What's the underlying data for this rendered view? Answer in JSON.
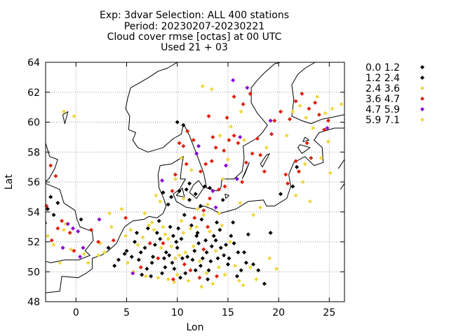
{
  "chart_data": {
    "type": "scatter",
    "title_lines": [
      "Exp: 3dvar   Selection: ALL     400 stations",
      "Period: 20230207-20230221",
      "Cloud cover rmse [octas] at  00 UTC",
      "Used 21 + 03"
    ],
    "xlabel": "Lon",
    "ylabel": "Lat",
    "xlim": [
      -3,
      26.5
    ],
    "ylim": [
      48,
      64
    ],
    "xticks": [
      0,
      5,
      10,
      15,
      20,
      25
    ],
    "yticks": [
      48,
      50,
      52,
      54,
      56,
      58,
      60,
      62,
      64
    ],
    "grid": true,
    "legend_position": "right",
    "basemap": "coastlines",
    "series": [
      {
        "name": "0.0 1.2",
        "color": "#000000",
        "points": [
          [
            -2.5,
            55.0
          ],
          [
            -1.8,
            54.6
          ],
          [
            -2.8,
            54.2
          ],
          [
            3.2,
            51.6
          ],
          [
            3.8,
            50.4
          ],
          [
            5.0,
            51.4
          ],
          [
            5.5,
            51.0
          ],
          [
            5.8,
            52.0
          ],
          [
            6.2,
            50.8
          ],
          [
            6.5,
            49.8
          ],
          [
            6.8,
            51.6
          ],
          [
            7.0,
            50.2
          ],
          [
            7.5,
            50.6
          ],
          [
            7.8,
            51.8
          ],
          [
            8.0,
            52.6
          ],
          [
            8.2,
            53.4
          ],
          [
            8.5,
            49.9
          ],
          [
            8.7,
            50.9
          ],
          [
            8.9,
            51.3
          ],
          [
            9.2,
            51.1
          ],
          [
            9.5,
            50.6
          ],
          [
            9.7,
            50.2
          ],
          [
            9.9,
            52.0
          ],
          [
            10.1,
            52.9
          ],
          [
            10.3,
            49.6
          ],
          [
            10.5,
            50.9
          ],
          [
            10.7,
            53.8
          ],
          [
            10.9,
            55.5
          ],
          [
            11.2,
            55.9
          ],
          [
            11.5,
            50.8
          ],
          [
            11.7,
            51.4
          ],
          [
            11.9,
            52.4
          ],
          [
            12.1,
            51.9
          ],
          [
            12.3,
            50.4
          ],
          [
            12.5,
            50.9
          ],
          [
            12.7,
            55.7
          ],
          [
            12.9,
            51.3
          ],
          [
            13.1,
            50.1
          ],
          [
            13.3,
            50.7
          ],
          [
            13.6,
            52.4
          ],
          [
            13.8,
            52.1
          ],
          [
            14.0,
            50.9
          ],
          [
            14.3,
            51.6
          ],
          [
            14.6,
            51.1
          ],
          [
            15.0,
            50.5
          ],
          [
            15.3,
            52.4
          ],
          [
            15.6,
            51.9
          ],
          [
            15.9,
            49.7
          ],
          [
            16.3,
            50.1
          ],
          [
            16.6,
            51.3
          ],
          [
            17.0,
            52.5
          ],
          [
            17.5,
            50.5
          ],
          [
            18.6,
            49.2
          ],
          [
            19.2,
            52.6
          ],
          [
            20.2,
            55.2
          ],
          [
            21.4,
            55.7
          ],
          [
            10.0,
            60.0
          ],
          [
            10.6,
            59.8
          ],
          [
            11.2,
            54.8
          ],
          [
            9.4,
            55.0
          ]
        ]
      },
      {
        "name": "1.2 2.4",
        "color": "#000000",
        "points": [
          [
            -2.2,
            53.8
          ],
          [
            0.5,
            53.5
          ],
          [
            4.2,
            50.8
          ],
          [
            4.8,
            51.2
          ],
          [
            6.0,
            52.6
          ],
          [
            6.4,
            51.3
          ],
          [
            7.1,
            52.9
          ],
          [
            7.6,
            51.0
          ],
          [
            8.3,
            52.2
          ],
          [
            8.8,
            50.3
          ],
          [
            9.3,
            53.0
          ],
          [
            9.6,
            52.4
          ],
          [
            10.0,
            51.6
          ],
          [
            10.4,
            52.2
          ],
          [
            10.8,
            49.9
          ],
          [
            11.0,
            51.0
          ],
          [
            11.4,
            53.1
          ],
          [
            11.8,
            50.1
          ],
          [
            12.0,
            52.6
          ],
          [
            12.4,
            53.5
          ],
          [
            12.8,
            52.1
          ],
          [
            13.0,
            49.5
          ],
          [
            13.4,
            51.7
          ],
          [
            13.9,
            53.3
          ],
          [
            14.2,
            52.8
          ],
          [
            14.8,
            51.8
          ],
          [
            15.1,
            50.9
          ],
          [
            15.5,
            53.3
          ],
          [
            16.0,
            51.3
          ],
          [
            16.8,
            50.6
          ],
          [
            18.0,
            50.1
          ],
          [
            9.1,
            54.5
          ],
          [
            10.2,
            55.4
          ],
          [
            11.8,
            55.2
          ],
          [
            12.3,
            54.4
          ],
          [
            13.2,
            55.6
          ],
          [
            14.5,
            54.8
          ],
          [
            8.6,
            55.3
          ],
          [
            21.8,
            57.0
          ],
          [
            7.4,
            49.7
          ]
        ]
      },
      {
        "name": "2.4 3.6",
        "color": "#f0d840",
        "points": [
          [
            -2.8,
            52.4
          ],
          [
            -2.2,
            51.8
          ],
          [
            -1.6,
            50.6
          ],
          [
            -1.0,
            53.2
          ],
          [
            -0.2,
            60.4
          ],
          [
            -1.2,
            60.7
          ],
          [
            0.8,
            51.2
          ],
          [
            1.2,
            50.6
          ],
          [
            2.2,
            51.1
          ],
          [
            2.8,
            51.3
          ],
          [
            3.5,
            53.0
          ],
          [
            4.5,
            54.2
          ],
          [
            4.9,
            52.4
          ],
          [
            5.1,
            50.6
          ],
          [
            5.4,
            52.8
          ],
          [
            5.7,
            50.0
          ],
          [
            6.1,
            51.8
          ],
          [
            6.6,
            52.3
          ],
          [
            6.9,
            49.7
          ],
          [
            7.2,
            53.1
          ],
          [
            7.7,
            52.8
          ],
          [
            8.1,
            49.6
          ],
          [
            8.4,
            51.6
          ],
          [
            8.6,
            53.0
          ],
          [
            8.8,
            52.5
          ],
          [
            9.1,
            49.5
          ],
          [
            9.4,
            51.7
          ],
          [
            9.8,
            50.9
          ],
          [
            10.0,
            49.8
          ],
          [
            10.2,
            51.1
          ],
          [
            10.4,
            53.4
          ],
          [
            10.6,
            52.6
          ],
          [
            10.8,
            51.3
          ],
          [
            11.1,
            49.4
          ],
          [
            11.3,
            52.9
          ],
          [
            11.6,
            51.7
          ],
          [
            11.9,
            53.0
          ],
          [
            12.2,
            50.7
          ],
          [
            12.6,
            53.8
          ],
          [
            12.9,
            49.9
          ],
          [
            13.2,
            52.7
          ],
          [
            13.5,
            49.2
          ],
          [
            13.8,
            51.4
          ],
          [
            14.1,
            50.3
          ],
          [
            14.4,
            53.1
          ],
          [
            14.7,
            49.8
          ],
          [
            15.2,
            52.0
          ],
          [
            15.7,
            50.4
          ],
          [
            16.1,
            49.4
          ],
          [
            16.5,
            49.1
          ],
          [
            17.2,
            50.3
          ],
          [
            17.5,
            53.8
          ],
          [
            18.2,
            54.3
          ],
          [
            12.5,
            62.4
          ],
          [
            13.4,
            62.2
          ],
          [
            15.3,
            59.7
          ],
          [
            16.6,
            58.8
          ],
          [
            18.8,
            58.3
          ],
          [
            20.8,
            59.1
          ],
          [
            21.4,
            60.7
          ],
          [
            22.1,
            61.1
          ],
          [
            22.7,
            60.3
          ],
          [
            23.4,
            59.6
          ],
          [
            23.8,
            61.7
          ],
          [
            24.6,
            60.6
          ],
          [
            25.3,
            60.9
          ],
          [
            26.2,
            61.2
          ],
          [
            24.9,
            58.7
          ],
          [
            22.6,
            57.2
          ],
          [
            22.4,
            56.0
          ],
          [
            23.1,
            54.7
          ],
          [
            21.7,
            55.1
          ],
          [
            24.2,
            57.6
          ],
          [
            25.1,
            56.6
          ],
          [
            14.5,
            56.2
          ],
          [
            15.0,
            57.5
          ],
          [
            10.4,
            57.6
          ],
          [
            9.8,
            56.2
          ],
          [
            11.4,
            56.8
          ],
          [
            12.0,
            54.2
          ],
          [
            13.0,
            54.5
          ],
          [
            14.1,
            53.9
          ],
          [
            16.2,
            54.6
          ],
          [
            19.8,
            50.2
          ],
          [
            7.9,
            55.1
          ],
          [
            8.3,
            54.7
          ],
          [
            -0.5,
            51.5
          ],
          [
            -1.2,
            52.8
          ],
          [
            2.4,
            51.9
          ],
          [
            17.8,
            49.5
          ],
          [
            9.7,
            49.3
          ],
          [
            12.4,
            49.0
          ]
        ]
      },
      {
        "name": "3.6 4.7",
        "color": "#e02010",
        "points": [
          [
            -2.5,
            57.1
          ],
          [
            -2.0,
            56.4
          ],
          [
            -1.4,
            53.4
          ],
          [
            -2.4,
            52.1
          ],
          [
            -1.8,
            52.9
          ],
          [
            -2.9,
            54.4
          ],
          [
            -0.6,
            52.6
          ],
          [
            -0.2,
            51.4
          ],
          [
            1.5,
            52.8
          ],
          [
            3.7,
            52.1
          ],
          [
            4.9,
            53.6
          ],
          [
            6.4,
            50.3
          ],
          [
            7.3,
            51.9
          ],
          [
            8.1,
            50.9
          ],
          [
            8.6,
            51.9
          ],
          [
            9.6,
            49.5
          ],
          [
            10.7,
            50.5
          ],
          [
            11.3,
            50.1
          ],
          [
            11.7,
            53.6
          ],
          [
            12.2,
            49.6
          ],
          [
            12.6,
            51.5
          ],
          [
            13.0,
            53.0
          ],
          [
            13.9,
            49.7
          ],
          [
            14.1,
            55.5
          ],
          [
            14.7,
            55.7
          ],
          [
            12.3,
            56.7
          ],
          [
            12.8,
            57.2
          ],
          [
            13.4,
            57.4
          ],
          [
            13.8,
            58.3
          ],
          [
            14.6,
            58.1
          ],
          [
            15.1,
            58.8
          ],
          [
            15.6,
            59.1
          ],
          [
            16.0,
            58.6
          ],
          [
            16.8,
            57.3
          ],
          [
            17.4,
            57.9
          ],
          [
            18.2,
            57.8
          ],
          [
            18.6,
            56.7
          ],
          [
            17.9,
            58.9
          ],
          [
            19.3,
            59.2
          ],
          [
            19.6,
            60.1
          ],
          [
            20.2,
            60.7
          ],
          [
            21.1,
            60.2
          ],
          [
            21.7,
            61.4
          ],
          [
            22.3,
            61.9
          ],
          [
            23.0,
            60.9
          ],
          [
            23.6,
            61.3
          ],
          [
            24.0,
            60.5
          ],
          [
            24.5,
            59.5
          ],
          [
            24.9,
            60.1
          ],
          [
            22.8,
            58.6
          ],
          [
            23.2,
            57.6
          ],
          [
            21.7,
            57.4
          ],
          [
            22.0,
            56.7
          ],
          [
            20.7,
            56.5
          ],
          [
            20.9,
            55.9
          ],
          [
            11.0,
            59.4
          ],
          [
            10.6,
            58.4
          ],
          [
            10.2,
            58.6
          ],
          [
            11.6,
            58.8
          ],
          [
            9.5,
            55.4
          ],
          [
            10.9,
            57.2
          ],
          [
            13.5,
            59.0
          ],
          [
            13.1,
            60.4
          ],
          [
            14.9,
            60.3
          ],
          [
            16.5,
            61.2
          ],
          [
            17.2,
            61.9
          ],
          [
            15.6,
            61.7
          ],
          [
            13.2,
            54.9
          ],
          [
            12.6,
            54.1
          ],
          [
            16.4,
            56.0
          ],
          [
            9.8,
            56.5
          ],
          [
            2.2,
            52.0
          ]
        ]
      },
      {
        "name": "4.7 5.9",
        "color": "#8a00d8",
        "points": [
          [
            -0.8,
            53.2
          ],
          [
            -0.3,
            52.9
          ],
          [
            0.2,
            52.7
          ],
          [
            0.7,
            51.6
          ],
          [
            0.4,
            51.0
          ],
          [
            -1.3,
            51.6
          ],
          [
            15.5,
            62.8
          ],
          [
            16.9,
            62.3
          ],
          [
            14.8,
            57.1
          ],
          [
            15.9,
            56.2
          ],
          [
            16.2,
            59.0
          ],
          [
            13.5,
            55.4
          ],
          [
            19.2,
            60.1
          ],
          [
            24.8,
            59.6
          ],
          [
            12.1,
            58.4
          ],
          [
            13.8,
            54.3
          ],
          [
            5.6,
            49.9
          ],
          [
            2.3,
            53.5
          ],
          [
            8.5,
            56.1
          ],
          [
            11.9,
            57.9
          ]
        ]
      },
      {
        "name": "5.9 7.1",
        "color": "#f0d840",
        "points": [
          [
            6.8,
            53.9
          ],
          [
            7.5,
            53.3
          ],
          [
            9.1,
            52.2
          ],
          [
            10.6,
            54.9
          ],
          [
            14.2,
            59.1
          ],
          [
            16.3,
            60.7
          ],
          [
            19.1,
            50.9
          ],
          [
            3.3,
            53.9
          ]
        ]
      }
    ]
  }
}
